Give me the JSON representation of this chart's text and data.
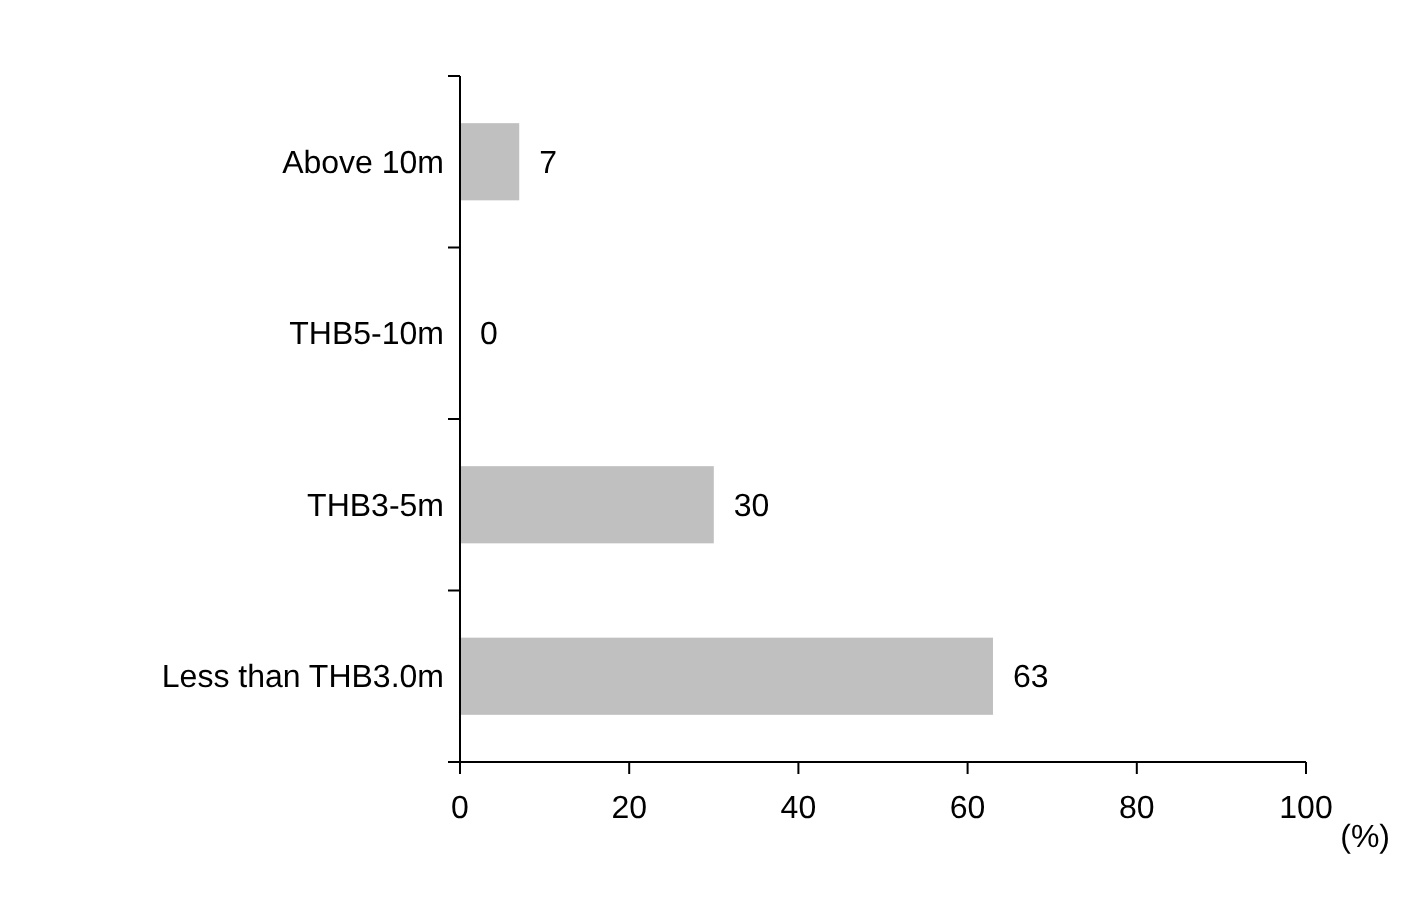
{
  "chart_data": {
    "type": "bar",
    "orientation": "horizontal",
    "categories": [
      "Above 10m",
      "THB5-10m",
      "THB3-5m",
      "Less than THB3.0m"
    ],
    "values": [
      7,
      0,
      30,
      63
    ],
    "color": "#c0c0c0",
    "xlim": [
      0,
      100
    ],
    "xticks": [
      0,
      20,
      40,
      60,
      80,
      100
    ],
    "xlabel": "(%)",
    "data_labels": true,
    "grid": false
  }
}
